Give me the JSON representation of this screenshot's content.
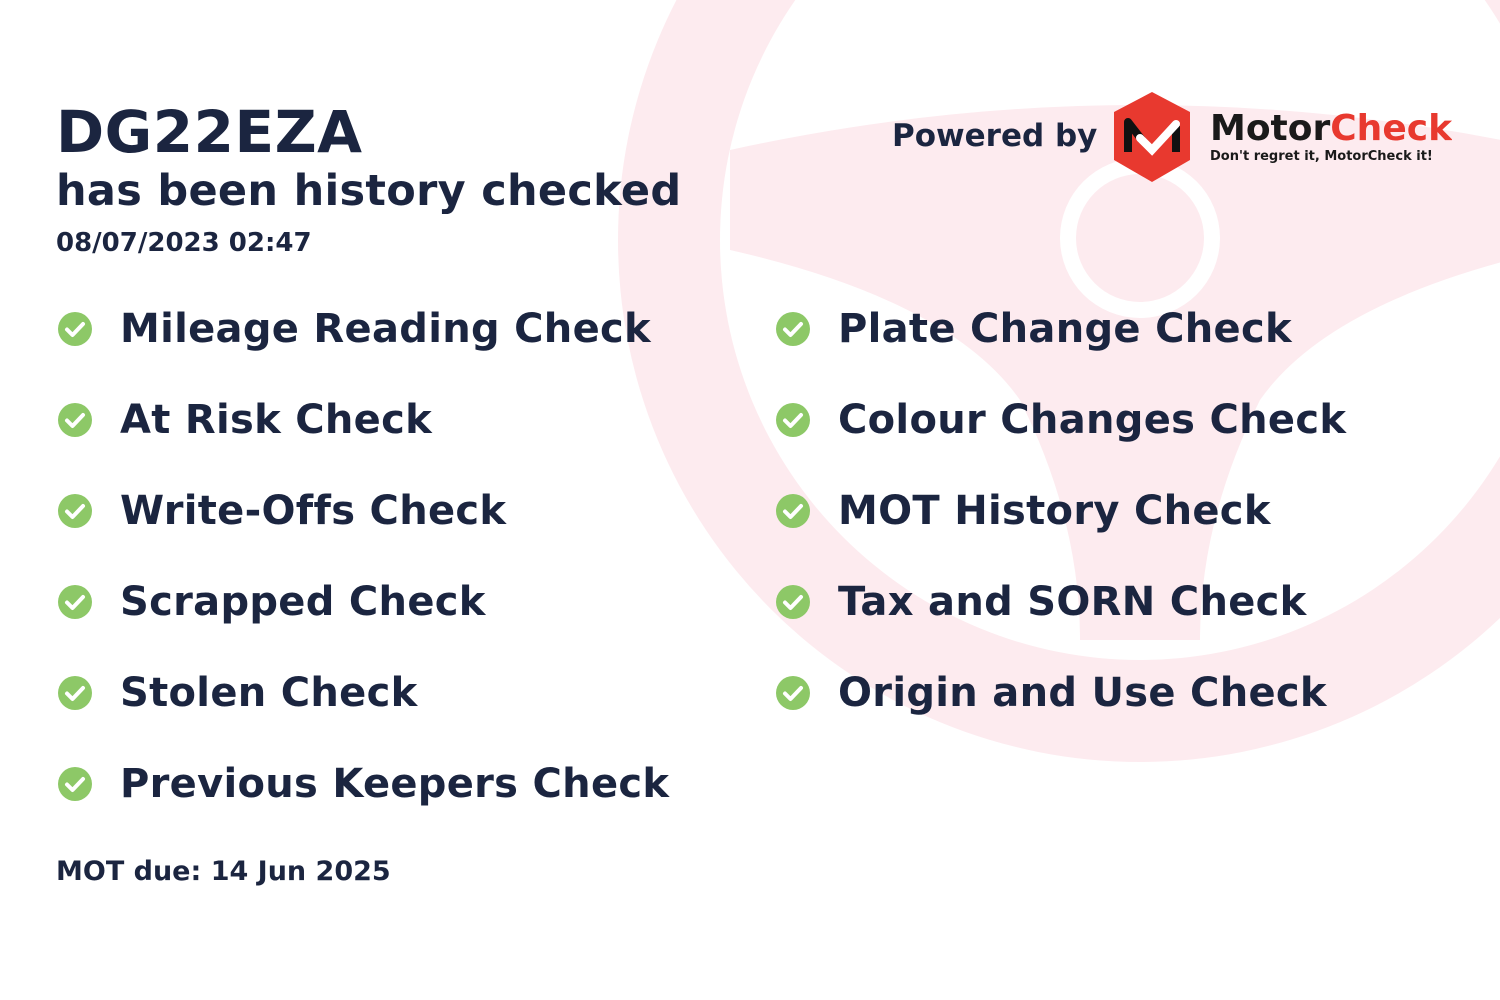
{
  "header": {
    "plate": "DG22EZA",
    "subtitle": "has been history checked",
    "datetime": "08/07/2023 02:47"
  },
  "branding": {
    "powered_by": "Powered by",
    "logo_word1": "Motor",
    "logo_word2": "Check",
    "tagline": "Don't regret it, MotorCheck it!",
    "brand_color": "#e8392f"
  },
  "checks_left": [
    {
      "label": "Mileage Reading Check",
      "icon": "check-circle-icon"
    },
    {
      "label": "At Risk Check",
      "icon": "check-circle-icon"
    },
    {
      "label": "Write-Offs Check",
      "icon": "check-circle-icon"
    },
    {
      "label": "Scrapped Check",
      "icon": "check-circle-icon"
    },
    {
      "label": "Stolen Check",
      "icon": "check-circle-icon"
    },
    {
      "label": "Previous Keepers Check",
      "icon": "check-circle-icon"
    }
  ],
  "checks_right": [
    {
      "label": "Plate Change Check",
      "icon": "check-circle-icon"
    },
    {
      "label": "Colour Changes Check",
      "icon": "check-circle-icon"
    },
    {
      "label": "MOT History Check",
      "icon": "check-circle-icon"
    },
    {
      "label": "Tax and SORN Check",
      "icon": "check-circle-icon"
    },
    {
      "label": "Origin and Use Check",
      "icon": "check-circle-icon"
    }
  ],
  "footer": {
    "mot_due": "MOT due: 14 Jun 2025"
  },
  "colors": {
    "text": "#1b2540",
    "check": "#8dc867",
    "wheel": "#fdebef"
  }
}
